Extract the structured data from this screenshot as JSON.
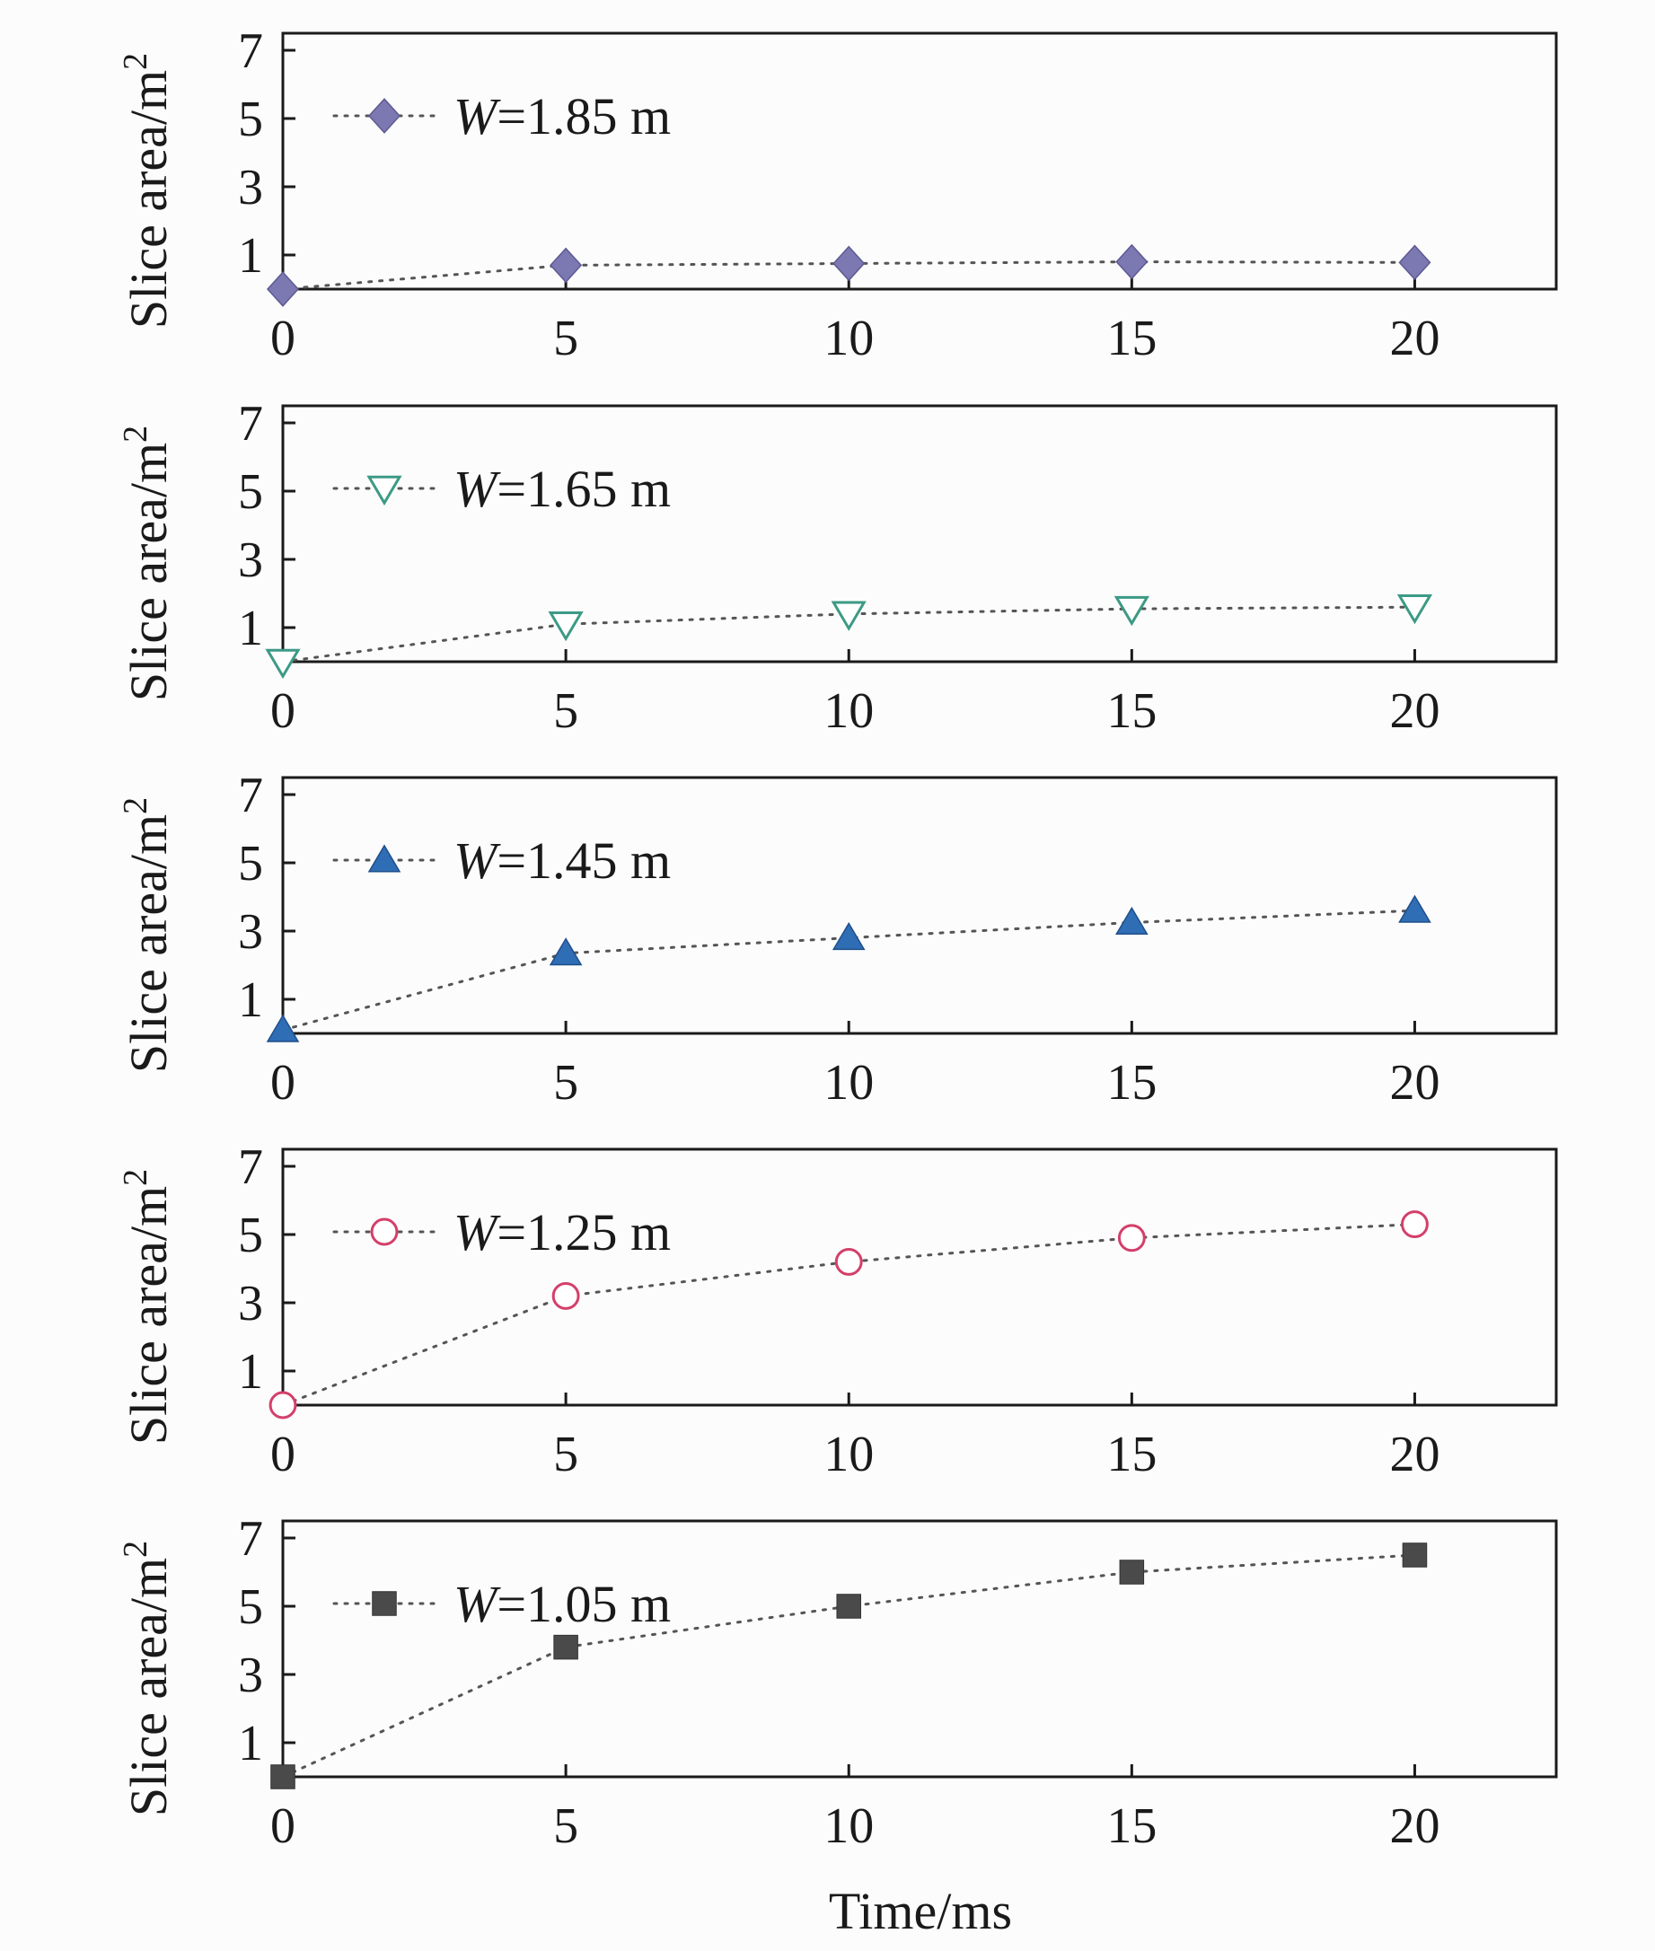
{
  "chart_data": {
    "type": "scatter",
    "title": "",
    "xlabel": "Time/ms",
    "ylabel_prefix": "Slice area/m",
    "ylabel_sup": "2",
    "xlim": [
      0,
      22.5
    ],
    "ylim": [
      0,
      7.5
    ],
    "x": [
      0,
      5,
      10,
      15,
      20
    ],
    "x_ticks": [
      0,
      5,
      10,
      15,
      20
    ],
    "y_ticks": [
      1,
      3,
      5,
      7
    ],
    "legend_position": "top-left",
    "series": [
      {
        "name_prefix": "W",
        "name_suffix": "=1.85 m",
        "marker": "diamond",
        "color": "#7b78b2",
        "values": [
          0,
          0.7,
          0.75,
          0.8,
          0.78
        ]
      },
      {
        "name_prefix": "W",
        "name_suffix": "=1.65 m",
        "marker": "triangle-down-open",
        "color": "#3c9a85",
        "values": [
          0,
          1.1,
          1.4,
          1.55,
          1.6
        ]
      },
      {
        "name_prefix": "W",
        "name_suffix": "=1.45 m",
        "marker": "triangle-up",
        "color": "#2f6db5",
        "values": [
          0.1,
          2.35,
          2.8,
          3.25,
          3.6
        ]
      },
      {
        "name_prefix": "W",
        "name_suffix": "=1.25 m",
        "marker": "circle-open",
        "color": "#d43f6a",
        "values": [
          0,
          3.2,
          4.2,
          4.9,
          5.3
        ]
      },
      {
        "name_prefix": "W",
        "name_suffix": "=1.05 m",
        "marker": "square",
        "color": "#4a4a4a",
        "values": [
          0,
          3.8,
          5.0,
          6.0,
          6.5
        ]
      }
    ]
  }
}
